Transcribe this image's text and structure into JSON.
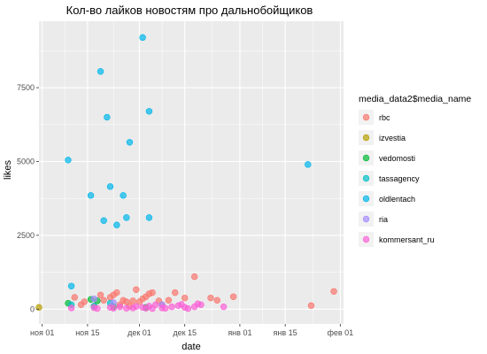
{
  "chart_data": {
    "type": "scatter",
    "title": "Кол-во лайков новостям про дальнобойщиков",
    "xlabel": "date",
    "ylabel": "likes",
    "x_ticks": [
      {
        "date": "2015-11-01",
        "label": "ноя 01"
      },
      {
        "date": "2015-11-15",
        "label": "ноя 15"
      },
      {
        "date": "2015-12-01",
        "label": "дек 01"
      },
      {
        "date": "2015-12-15",
        "label": "дек 15"
      },
      {
        "date": "2016-01-01",
        "label": "янв 01"
      },
      {
        "date": "2016-01-15",
        "label": "янв 15"
      },
      {
        "date": "2016-02-01",
        "label": "фев 01"
      }
    ],
    "xlim": [
      "2015-10-31",
      "2016-02-02"
    ],
    "y_ticks": [
      0,
      2500,
      5000,
      7500
    ],
    "ylim": [
      -500,
      9750
    ],
    "grid": true,
    "legend_title": "media_data2$media_name",
    "legend_position": "right",
    "series": [
      {
        "name": "rbc",
        "color": "#F8766D",
        "points": [
          {
            "x": "2015-11-11",
            "y": 400
          },
          {
            "x": "2015-11-13",
            "y": 150
          },
          {
            "x": "2015-11-14",
            "y": 250
          },
          {
            "x": "2015-11-17",
            "y": 100
          },
          {
            "x": "2015-11-19",
            "y": 480
          },
          {
            "x": "2015-11-20",
            "y": 300
          },
          {
            "x": "2015-11-22",
            "y": 400
          },
          {
            "x": "2015-11-23",
            "y": 480
          },
          {
            "x": "2015-11-24",
            "y": 560
          },
          {
            "x": "2015-11-25",
            "y": 150
          },
          {
            "x": "2015-11-26",
            "y": 300
          },
          {
            "x": "2015-11-27",
            "y": 250
          },
          {
            "x": "2015-11-28",
            "y": 100
          },
          {
            "x": "2015-11-29",
            "y": 280
          },
          {
            "x": "2015-11-30",
            "y": 660
          },
          {
            "x": "2015-12-01",
            "y": 250
          },
          {
            "x": "2015-12-02",
            "y": 350
          },
          {
            "x": "2015-12-03",
            "y": 420
          },
          {
            "x": "2015-12-04",
            "y": 520
          },
          {
            "x": "2015-12-05",
            "y": 560
          },
          {
            "x": "2015-12-07",
            "y": 280
          },
          {
            "x": "2015-12-08",
            "y": 150
          },
          {
            "x": "2015-12-10",
            "y": 300
          },
          {
            "x": "2015-12-12",
            "y": 560
          },
          {
            "x": "2015-12-15",
            "y": 380
          },
          {
            "x": "2015-12-18",
            "y": 1100
          },
          {
            "x": "2015-12-23",
            "y": 380
          },
          {
            "x": "2015-12-25",
            "y": 300
          },
          {
            "x": "2015-12-30",
            "y": 420
          },
          {
            "x": "2016-01-23",
            "y": 120
          },
          {
            "x": "2016-01-30",
            "y": 600
          }
        ]
      },
      {
        "name": "izvestia",
        "color": "#B79F00",
        "points": [
          {
            "x": "2015-10-31",
            "y": 60
          }
        ]
      },
      {
        "name": "vedomosti",
        "color": "#00BA38",
        "points": [
          {
            "x": "2015-11-09",
            "y": 200
          },
          {
            "x": "2015-11-16",
            "y": 330
          },
          {
            "x": "2015-11-18",
            "y": 280
          },
          {
            "x": "2015-11-23",
            "y": 80
          },
          {
            "x": "2015-12-03",
            "y": 60
          }
        ]
      },
      {
        "name": "tassagency",
        "color": "#00BFC4",
        "points": [
          {
            "x": "2015-11-10",
            "y": 150
          },
          {
            "x": "2015-11-17",
            "y": 100
          },
          {
            "x": "2015-11-22",
            "y": 200
          }
        ]
      },
      {
        "name": "oldlentach",
        "color": "#00B6EB",
        "points": [
          {
            "x": "2015-11-09",
            "y": 5050
          },
          {
            "x": "2015-11-10",
            "y": 780
          },
          {
            "x": "2015-11-16",
            "y": 3850
          },
          {
            "x": "2015-11-19",
            "y": 8050
          },
          {
            "x": "2015-11-20",
            "y": 3000
          },
          {
            "x": "2015-11-21",
            "y": 6500
          },
          {
            "x": "2015-11-22",
            "y": 4150
          },
          {
            "x": "2015-11-24",
            "y": 2850
          },
          {
            "x": "2015-11-26",
            "y": 3850
          },
          {
            "x": "2015-11-27",
            "y": 3100
          },
          {
            "x": "2015-11-28",
            "y": 5650
          },
          {
            "x": "2015-12-02",
            "y": 9200
          },
          {
            "x": "2015-12-04",
            "y": 6700
          },
          {
            "x": "2015-12-04",
            "y": 3100
          },
          {
            "x": "2016-01-22",
            "y": 4900
          }
        ]
      },
      {
        "name": "ria",
        "color": "#A58AFF",
        "points": [
          {
            "x": "2015-11-17",
            "y": 350
          },
          {
            "x": "2015-11-23",
            "y": 220
          },
          {
            "x": "2015-12-08",
            "y": 150
          }
        ]
      },
      {
        "name": "kommersant_ru",
        "color": "#FB61D7",
        "points": [
          {
            "x": "2015-11-10",
            "y": 40
          },
          {
            "x": "2015-11-17",
            "y": 50
          },
          {
            "x": "2015-11-18",
            "y": 20
          },
          {
            "x": "2015-11-22",
            "y": 60
          },
          {
            "x": "2015-11-23",
            "y": 30
          },
          {
            "x": "2015-11-25",
            "y": 80
          },
          {
            "x": "2015-11-27",
            "y": 30
          },
          {
            "x": "2015-11-29",
            "y": 40
          },
          {
            "x": "2015-11-30",
            "y": 90
          },
          {
            "x": "2015-12-02",
            "y": 60
          },
          {
            "x": "2015-12-03",
            "y": 30
          },
          {
            "x": "2015-12-04",
            "y": 100
          },
          {
            "x": "2015-12-05",
            "y": 20
          },
          {
            "x": "2015-12-06",
            "y": 150
          },
          {
            "x": "2015-12-08",
            "y": 40
          },
          {
            "x": "2015-12-09",
            "y": 30
          },
          {
            "x": "2015-12-11",
            "y": 80
          },
          {
            "x": "2015-12-13",
            "y": 120
          },
          {
            "x": "2015-12-14",
            "y": 160
          },
          {
            "x": "2015-12-15",
            "y": 60
          },
          {
            "x": "2015-12-16",
            "y": 20
          },
          {
            "x": "2015-12-18",
            "y": 80
          },
          {
            "x": "2015-12-19",
            "y": 180
          },
          {
            "x": "2015-12-20",
            "y": 150
          },
          {
            "x": "2015-12-27",
            "y": 80
          }
        ]
      }
    ]
  }
}
